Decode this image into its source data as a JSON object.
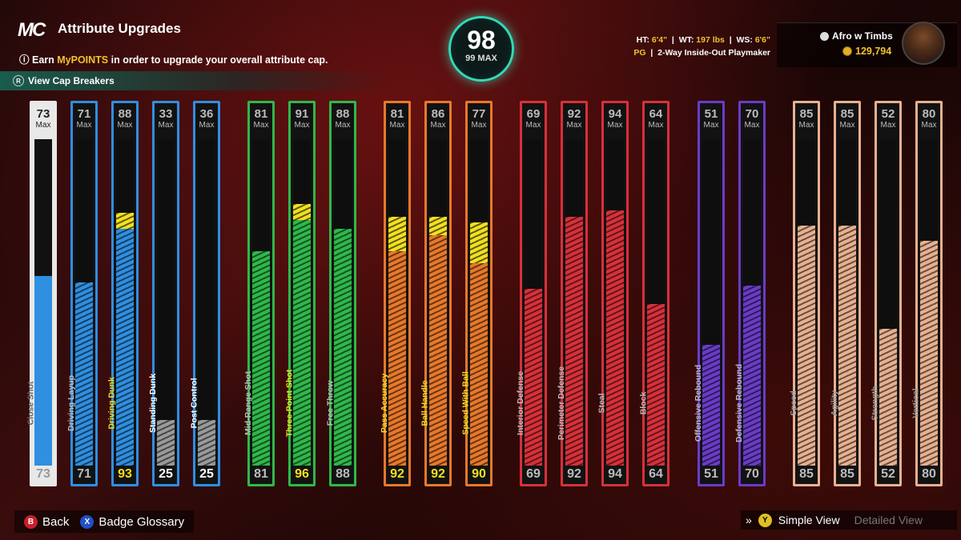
{
  "header": {
    "logo": "MC",
    "title": "Attribute Upgrades",
    "subtitle_pre": "Earn ",
    "subtitle_hl": "MyPOINTS",
    "subtitle_post": " in order to upgrade your overall attribute cap.",
    "cap_breakers": "View Cap Breakers"
  },
  "overall": {
    "value": "98",
    "max": "99 MAX"
  },
  "player": {
    "ht_label": "HT:",
    "ht": "6'4\"",
    "wt_label": "WT:",
    "wt": "197 lbs",
    "ws_label": "WS:",
    "ws": "6'6\"",
    "position": "PG",
    "archetype": "2-Way Inside-Out Playmaker",
    "name": "Afro w Timbs",
    "coins": "129,794"
  },
  "max_label": "Max",
  "attributes": [
    {
      "name": "Close Shot",
      "max": 73,
      "current": 73,
      "boost": 73,
      "group": "inside",
      "selected": true
    },
    {
      "name": "Driving Layup",
      "max": 71,
      "current": 71,
      "boost": 71,
      "group": "inside"
    },
    {
      "name": "Driving Dunk",
      "max": 88,
      "current": 93,
      "boost": 93,
      "base_fill": 88,
      "group": "inside",
      "boosted": true
    },
    {
      "name": "Standing Dunk",
      "max": 33,
      "current": 25,
      "boost": 25,
      "group": "inside",
      "gray": true
    },
    {
      "name": "Post Control",
      "max": 36,
      "current": 25,
      "boost": 25,
      "group": "inside",
      "gray": true
    },
    {
      "name": "Mid-Range Shot",
      "max": 81,
      "current": 81,
      "boost": 81,
      "group": "shooting"
    },
    {
      "name": "Three-Point Shot",
      "max": 91,
      "current": 96,
      "boost": 96,
      "base_fill": 91,
      "group": "shooting",
      "boosted": true
    },
    {
      "name": "Free Throw",
      "max": 88,
      "current": 88,
      "boost": 88,
      "group": "shooting"
    },
    {
      "name": "Pass Accuracy",
      "max": 81,
      "current": 92,
      "boost": 92,
      "base_fill": 81,
      "group": "playmaking",
      "boosted": true
    },
    {
      "name": "Ball Handle",
      "max": 86,
      "current": 92,
      "boost": 92,
      "base_fill": 86,
      "group": "playmaking",
      "boosted": true
    },
    {
      "name": "Speed With Ball",
      "max": 77,
      "current": 90,
      "boost": 90,
      "base_fill": 77,
      "group": "playmaking",
      "boosted": true
    },
    {
      "name": "Interior Defense",
      "max": 69,
      "current": 69,
      "boost": 69,
      "group": "defense"
    },
    {
      "name": "Perimeter Defense",
      "max": 92,
      "current": 92,
      "boost": 92,
      "group": "defense"
    },
    {
      "name": "Steal",
      "max": 94,
      "current": 94,
      "boost": 94,
      "group": "defense"
    },
    {
      "name": "Block",
      "max": 64,
      "current": 64,
      "boost": 64,
      "group": "defense"
    },
    {
      "name": "Offensive Rebound",
      "max": 51,
      "current": 51,
      "boost": 51,
      "group": "rebounding"
    },
    {
      "name": "Defensive Rebound",
      "max": 70,
      "current": 70,
      "boost": 70,
      "group": "rebounding"
    },
    {
      "name": "Speed",
      "max": 85,
      "current": 85,
      "boost": 85,
      "group": "physical"
    },
    {
      "name": "Agility",
      "max": 85,
      "current": 85,
      "boost": 85,
      "group": "physical"
    },
    {
      "name": "Strength",
      "max": 52,
      "current": 52,
      "boost": 52,
      "group": "physical"
    },
    {
      "name": "Vertical",
      "max": 80,
      "current": 80,
      "boost": 80,
      "group": "physical"
    }
  ],
  "group_colors": {
    "inside": "#2f8fe0",
    "shooting": "#2fb84a",
    "playmaking": "#e8782a",
    "defense": "#d8303a",
    "rebounding": "#6a3cc8",
    "physical": "#e8b090"
  },
  "boost_color": "#f2e020",
  "footer": {
    "back_btn": "B",
    "back": "Back",
    "glossary_btn": "X",
    "glossary": "Badge Glossary",
    "simple_btn": "Y",
    "simple": "Simple View",
    "detailed": "Detailed View"
  }
}
